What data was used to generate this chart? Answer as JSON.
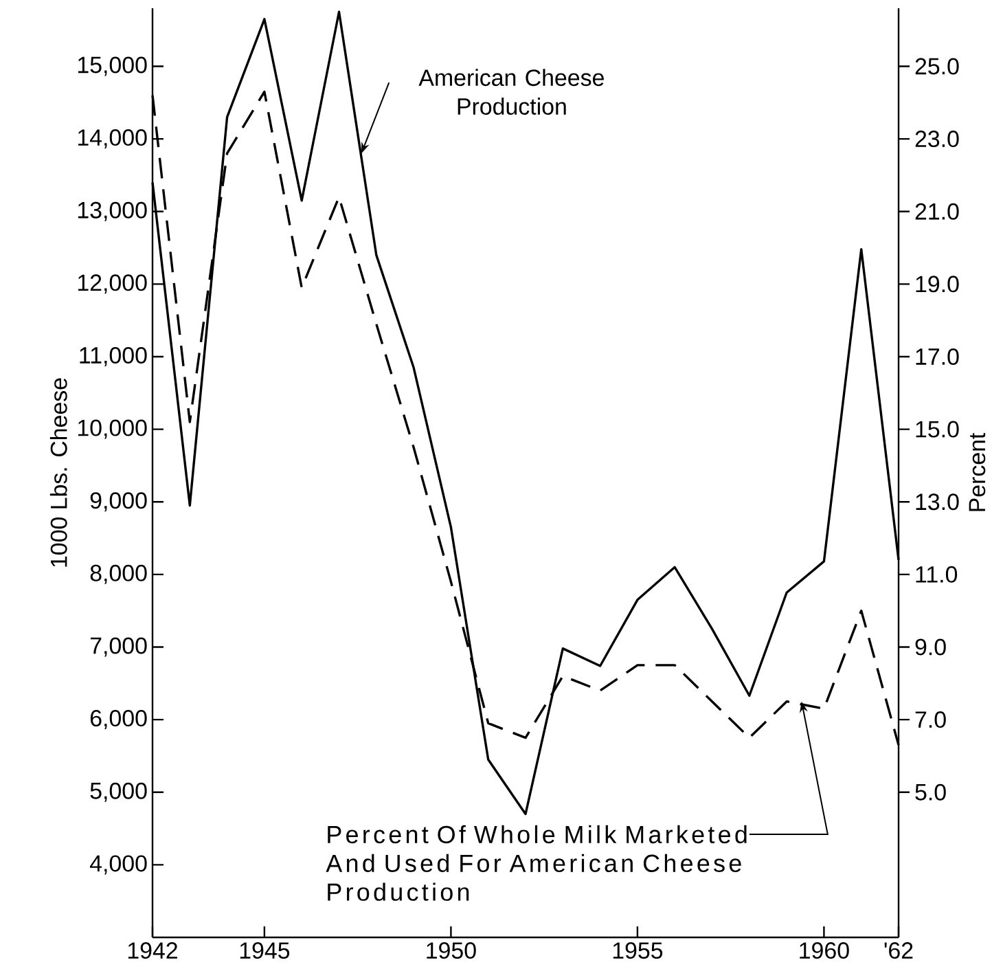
{
  "chart_data": {
    "type": "line",
    "ylabel": "1000 Lbs. Cheese",
    "y2label": "Percent",
    "x": [
      1942,
      1943,
      1944,
      1945,
      1946,
      1947,
      1948,
      1949,
      1950,
      1951,
      1952,
      1953,
      1954,
      1955,
      1956,
      1957,
      1958,
      1959,
      1960,
      1961,
      1962
    ],
    "series": [
      {
        "color": "#000000",
        "line_style": "solid",
        "values": [
          13400,
          8950,
          14300,
          15650,
          13150,
          15750,
          12400,
          10850,
          8650,
          5450,
          4700,
          6980,
          6740,
          7650,
          8100,
          7250,
          6330,
          7750,
          8180,
          12480,
          8200
        ]
      },
      {
        "color": "#000000",
        "line_style": "dashed",
        "axis": "y2",
        "values": [
          24.2,
          15.2,
          22.6,
          24.3,
          18.9,
          21.4,
          17.9,
          14.5,
          10.8,
          6.9,
          6.5,
          8.2,
          7.8,
          8.5,
          8.5,
          7.5,
          6.5,
          7.5,
          7.3,
          10.0,
          6.3
        ]
      }
    ],
    "xlim": [
      1942,
      1962
    ],
    "xticks": [
      1942,
      1945,
      1950,
      1955,
      1960,
      {
        "value": 1962,
        "label": "'62"
      }
    ],
    "ylim": [
      3000,
      15800
    ],
    "yticks": [
      {
        "value": 4000,
        "label": "4,000"
      },
      {
        "value": 5000,
        "label": "5,000"
      },
      {
        "value": 6000,
        "label": "6,000"
      },
      {
        "value": 7000,
        "label": "7,000"
      },
      {
        "value": 8000,
        "label": "8,000"
      },
      {
        "value": 9000,
        "label": "9,000"
      },
      {
        "value": 10000,
        "label": "10,000"
      },
      {
        "value": 11000,
        "label": "11,000"
      },
      {
        "value": 12000,
        "label": "12,000"
      },
      {
        "value": 13000,
        "label": "13,000"
      },
      {
        "value": 14000,
        "label": "14,000"
      },
      {
        "value": 15000,
        "label": "15,000"
      }
    ],
    "y2lim": [
      1.0,
      26.6
    ],
    "y2ticks": [
      {
        "value": 5,
        "label": "5.0"
      },
      {
        "value": 7,
        "label": "7.0"
      },
      {
        "value": 9,
        "label": "9.0"
      },
      {
        "value": 11,
        "label": "11.0"
      },
      {
        "value": 13,
        "label": "13.0"
      },
      {
        "value": 15,
        "label": "15.0"
      },
      {
        "value": 17,
        "label": "17.0"
      },
      {
        "value": 19,
        "label": "19.0"
      },
      {
        "value": 21,
        "label": "21.0"
      },
      {
        "value": 23,
        "label": "23.0"
      },
      {
        "value": 25,
        "label": "25.0"
      }
    ],
    "marker": "none",
    "annotations": [
      {
        "text": "American Cheese Production",
        "x": 1947.6,
        "y": 13800
      },
      {
        "text": "Percent Of Whole Milk Marketed And Used For American Cheese Production",
        "x": 1959.4,
        "y": 6250
      }
    ]
  }
}
